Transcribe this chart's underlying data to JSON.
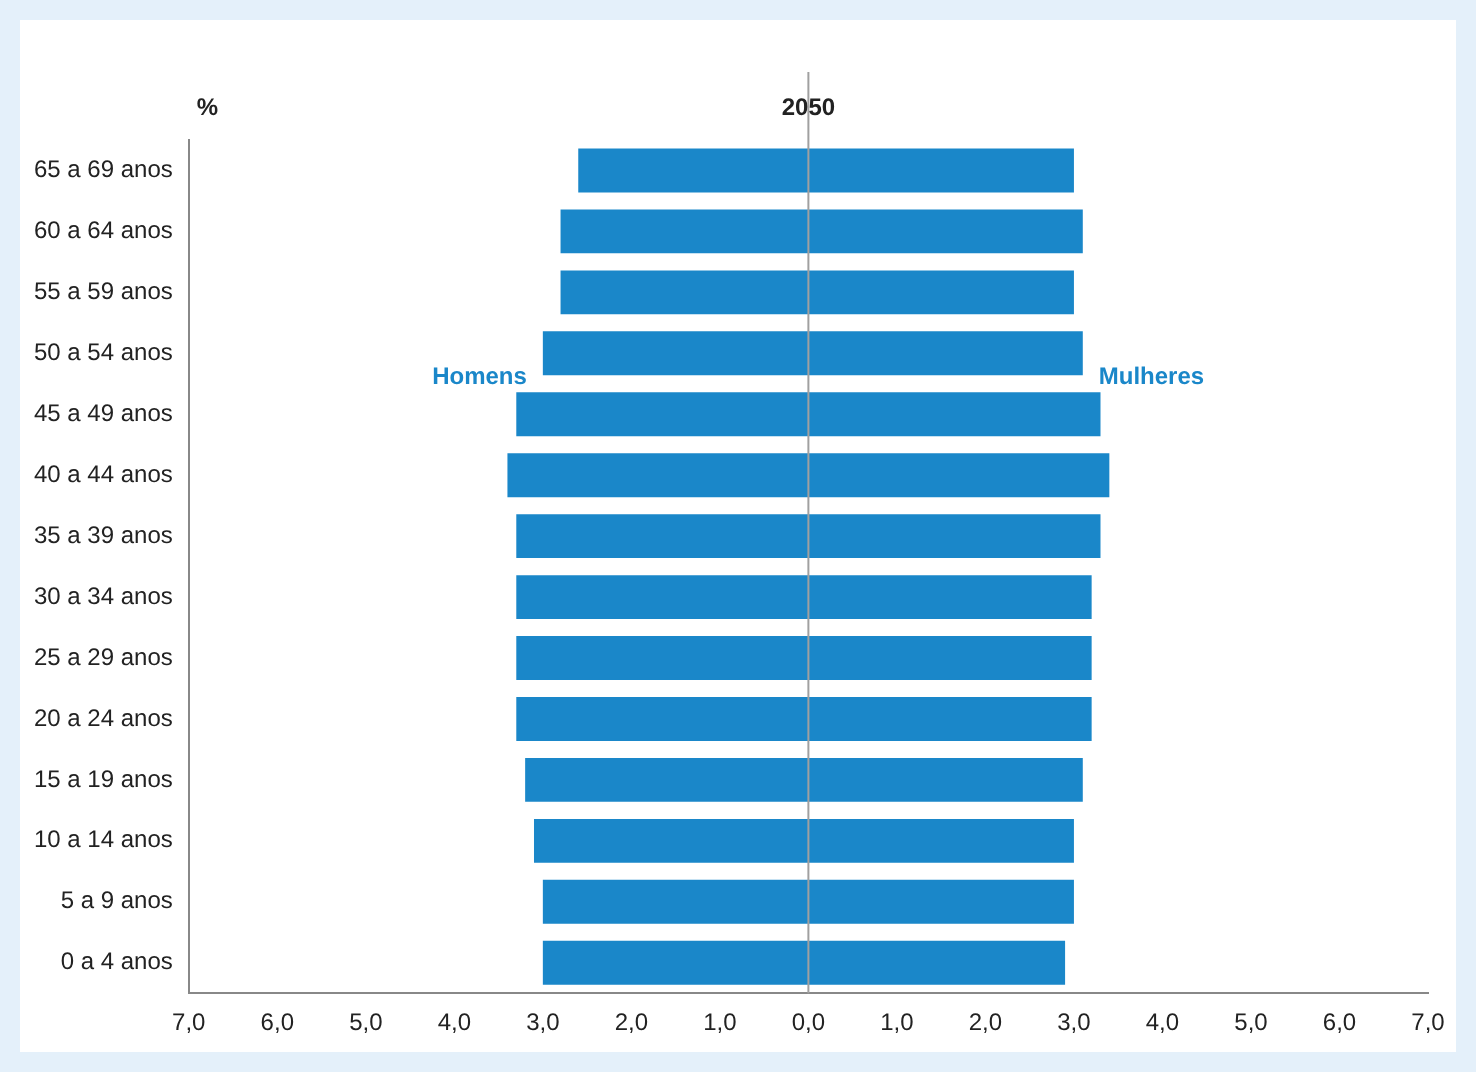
{
  "chart_data": {
    "type": "bar",
    "orientation": "horizontal",
    "stacked": true,
    "title": "2050",
    "xlabel": "%",
    "categories": [
      "65 a 69 anos",
      "60 a 64 anos",
      "55 a 59 anos",
      "50 a 54 anos",
      "45 a 49 anos",
      "40 a 44 anos",
      "35 a 39 anos",
      "30 a 34 anos",
      "25 a 29 anos",
      "20 a 24 anos",
      "15 a 19 anos",
      "10 a 14 anos",
      "5 a 9 anos",
      "0 a 4 anos"
    ],
    "series": [
      {
        "name": "Homens",
        "color": "#1a87c9",
        "values": [
          -2.6,
          -2.8,
          -2.8,
          -3.0,
          -3.3,
          -3.4,
          -3.3,
          -3.3,
          -3.3,
          -3.3,
          -3.2,
          -3.1,
          -3.0,
          -3.0
        ]
      },
      {
        "name": "Mulheres",
        "color": "#1a87c9",
        "values": [
          3.0,
          3.1,
          3.0,
          3.1,
          3.3,
          3.4,
          3.3,
          3.2,
          3.2,
          3.2,
          3.1,
          3.0,
          3.0,
          2.9
        ]
      }
    ],
    "xlim": [
      -7,
      7
    ],
    "xticks": [
      {
        "value": -7,
        "label": "7,0"
      },
      {
        "value": -6,
        "label": "6,0"
      },
      {
        "value": -5,
        "label": "5,0"
      },
      {
        "value": -4,
        "label": "4,0"
      },
      {
        "value": -3,
        "label": "3,0"
      },
      {
        "value": -2,
        "label": "2,0"
      },
      {
        "value": -1,
        "label": "1,0"
      },
      {
        "value": 0,
        "label": "0,0"
      },
      {
        "value": 1,
        "label": "1,0"
      },
      {
        "value": 2,
        "label": "2,0"
      },
      {
        "value": 3,
        "label": "3,0"
      },
      {
        "value": 4,
        "label": "4,0"
      },
      {
        "value": 5,
        "label": "5,0"
      },
      {
        "value": 6,
        "label": "6,0"
      },
      {
        "value": 7,
        "label": "7,0"
      }
    ],
    "ref_lines": [
      {
        "axis": "x",
        "value": 0,
        "color": "#a0a0a0"
      }
    ],
    "grid": false,
    "legend": false
  }
}
